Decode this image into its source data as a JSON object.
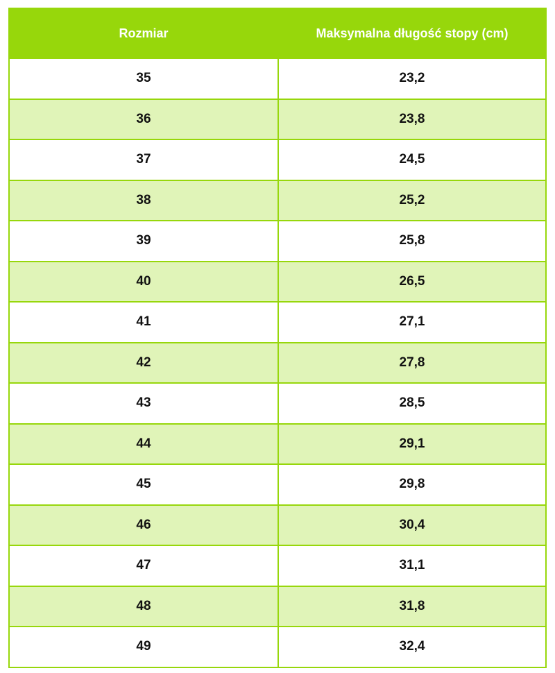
{
  "table": {
    "headers": [
      "Rozmiar",
      "Maksymalna długość stopy (cm)"
    ],
    "rows": [
      [
        "35",
        "23,2"
      ],
      [
        "36",
        "23,8"
      ],
      [
        "37",
        "24,5"
      ],
      [
        "38",
        "25,2"
      ],
      [
        "39",
        "25,8"
      ],
      [
        "40",
        "26,5"
      ],
      [
        "41",
        "27,1"
      ],
      [
        "42",
        "27,8"
      ],
      [
        "43",
        "28,5"
      ],
      [
        "44",
        "29,1"
      ],
      [
        "45",
        "29,8"
      ],
      [
        "46",
        "30,4"
      ],
      [
        "47",
        "31,1"
      ],
      [
        "48",
        "31,8"
      ],
      [
        "49",
        "32,4"
      ]
    ]
  },
  "colors": {
    "header": "#97d70b",
    "alt_row": "#e0f4b8",
    "border": "#97d70b"
  }
}
